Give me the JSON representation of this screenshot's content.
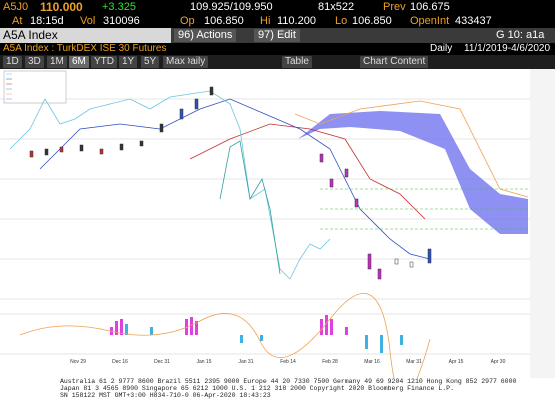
{
  "quote": {
    "ticker": "A5J0",
    "last": "110.000",
    "change": "+3.325",
    "bid_ask": "109.925/109.950",
    "size": "81x522",
    "prev_label": "Prev",
    "prev": "106.675",
    "time_label": "At",
    "time": "18:15d",
    "vol_label": "Vol",
    "vol": "310096",
    "open_label": "Op",
    "open": "106.850",
    "high_label": "Hi",
    "high": "110.200",
    "low_label": "Lo",
    "low": "106.850",
    "oi_label": "OpenInt",
    "oi": "433437"
  },
  "toolbar": {
    "security": "A5A Index",
    "actions": "96) Actions",
    "edit": "97) Edit",
    "page": "G 10: a1a"
  },
  "title": {
    "name": "A5A Index : TurkDEX ISE 30 Futures",
    "frequency": "Daily",
    "range": "11/1/2019-4/6/2020"
  },
  "periods": [
    "1D",
    "3D",
    "1M",
    "6M",
    "YTD",
    "1Y",
    "5Y",
    "Max"
  ],
  "frequency_button": "Daily",
  "table_button": "Table",
  "content_button": "Chart Content",
  "x_axis": [
    "Nov 29",
    "Dec 16",
    "Dec 31",
    "Jan 15",
    "Jan 31",
    "Feb 14",
    "Feb 28",
    "Mar 16",
    "Mar 31",
    "Apr 15",
    "Apr 30"
  ],
  "footer": [
    "Australia 61 2 9777 8600 Brazil 5511 2395 9000 Europe 44 20 7330 7500 Germany 49 69 9204 1210 Hong Kong 852 2977 6000",
    "Japan 81 3 4565 8900 Singapore 65 6212 1000 U.S. 1 212 318 2000 Copyright 2020 Bloomberg Finance L.P.",
    "SN 158122 MST GMT+3:00 H834-710-0 06-Apr-2020 18:43:23"
  ]
}
